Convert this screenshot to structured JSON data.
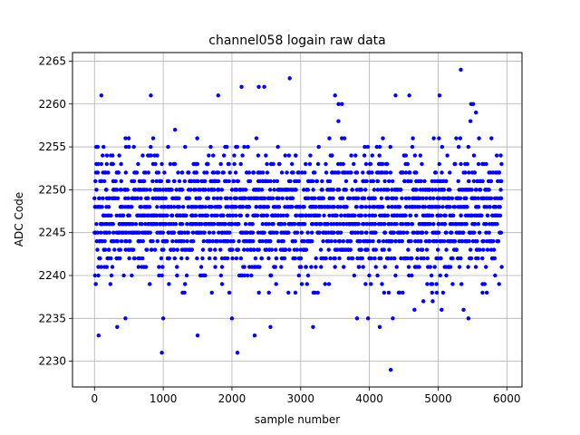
{
  "chart_data": {
    "type": "scatter",
    "title": "channel058 logain raw data",
    "xlabel": "sample number",
    "ylabel": "ADC Code",
    "xlim": [
      -320,
      6220
    ],
    "ylim": [
      2227,
      2266
    ],
    "xticks": [
      0,
      1000,
      2000,
      3000,
      4000,
      5000,
      6000
    ],
    "yticks": [
      2230,
      2235,
      2240,
      2245,
      2250,
      2255,
      2260,
      2265
    ],
    "grid": true,
    "marker_color": "#0000ff",
    "n_samples": 5900,
    "sample_step": 25,
    "core_range": [
      2239,
      2255
    ],
    "outliers": [
      {
        "x": 60,
        "y": 2233
      },
      {
        "x": 100,
        "y": 2261
      },
      {
        "x": 330,
        "y": 2234
      },
      {
        "x": 450,
        "y": 2235
      },
      {
        "x": 820,
        "y": 2261
      },
      {
        "x": 980,
        "y": 2231
      },
      {
        "x": 1000,
        "y": 2235
      },
      {
        "x": 1500,
        "y": 2233
      },
      {
        "x": 1800,
        "y": 2261
      },
      {
        "x": 2000,
        "y": 2235
      },
      {
        "x": 2080,
        "y": 2231
      },
      {
        "x": 2140,
        "y": 2262
      },
      {
        "x": 2330,
        "y": 2233
      },
      {
        "x": 2390,
        "y": 2262
      },
      {
        "x": 2470,
        "y": 2262
      },
      {
        "x": 2560,
        "y": 2234
      },
      {
        "x": 2840,
        "y": 2263
      },
      {
        "x": 3180,
        "y": 2234
      },
      {
        "x": 3500,
        "y": 2261
      },
      {
        "x": 3550,
        "y": 2260
      },
      {
        "x": 3600,
        "y": 2260
      },
      {
        "x": 3820,
        "y": 2235
      },
      {
        "x": 3980,
        "y": 2235
      },
      {
        "x": 4150,
        "y": 2234
      },
      {
        "x": 4310,
        "y": 2229
      },
      {
        "x": 4340,
        "y": 2235
      },
      {
        "x": 4380,
        "y": 2261
      },
      {
        "x": 4580,
        "y": 2261
      },
      {
        "x": 5020,
        "y": 2261
      },
      {
        "x": 5330,
        "y": 2264
      },
      {
        "x": 5370,
        "y": 2236
      },
      {
        "x": 5440,
        "y": 2235
      },
      {
        "x": 5480,
        "y": 2260
      },
      {
        "x": 5510,
        "y": 2260
      },
      {
        "x": 5470,
        "y": 2258
      },
      {
        "x": 5050,
        "y": 2236
      }
    ]
  }
}
